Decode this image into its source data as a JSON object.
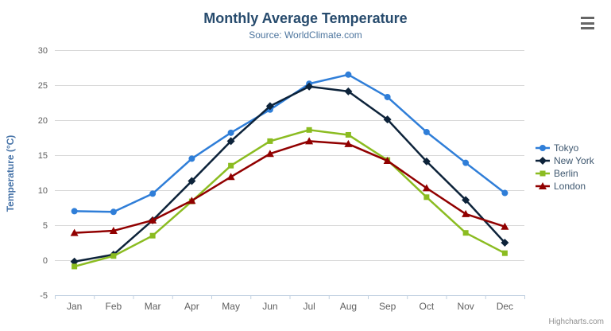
{
  "chart": {
    "title": "Monthly Average Temperature",
    "subtitle": "Source: WorldClimate.com",
    "credits": "Highcharts.com",
    "context_menu_icon": "hamburger-icon",
    "colors": {
      "title": "#274b6d",
      "subtitle": "#4d759e",
      "axis_title": "#4572a7",
      "tick_label": "#606060",
      "gridline": "#d8d8d8",
      "axis_line": "#c0d0e0",
      "legend_text": "#3e576f",
      "credits": "#909090"
    }
  },
  "chart_data": {
    "type": "line",
    "title": "Monthly Average Temperature",
    "subtitle": "Source: WorldClimate.com",
    "xlabel": "",
    "ylabel": "Temperature (°C)",
    "categories": [
      "Jan",
      "Feb",
      "Mar",
      "Apr",
      "May",
      "Jun",
      "Jul",
      "Aug",
      "Sep",
      "Oct",
      "Nov",
      "Dec"
    ],
    "ylim": [
      -5,
      30
    ],
    "yticks": [
      -5,
      0,
      5,
      10,
      15,
      20,
      25,
      30
    ],
    "grid": true,
    "legend_position": "right-middle",
    "series": [
      {
        "name": "Tokyo",
        "color": "#2f7ed8",
        "marker": "circle",
        "values": [
          7.0,
          6.9,
          9.5,
          14.5,
          18.2,
          21.5,
          25.2,
          26.5,
          23.3,
          18.3,
          13.9,
          9.6
        ]
      },
      {
        "name": "New York",
        "color": "#0d233a",
        "marker": "diamond",
        "values": [
          -0.2,
          0.8,
          5.7,
          11.3,
          17.0,
          22.0,
          24.8,
          24.1,
          20.1,
          14.1,
          8.6,
          2.5
        ]
      },
      {
        "name": "Berlin",
        "color": "#8bbc21",
        "marker": "square",
        "values": [
          -0.9,
          0.6,
          3.5,
          8.4,
          13.5,
          17.0,
          18.6,
          17.9,
          14.3,
          9.0,
          3.9,
          1.0
        ]
      },
      {
        "name": "London",
        "color": "#910000",
        "marker": "triangle",
        "values": [
          3.9,
          4.2,
          5.7,
          8.5,
          11.9,
          15.2,
          17.0,
          16.6,
          14.2,
          10.3,
          6.6,
          4.8
        ]
      }
    ]
  }
}
